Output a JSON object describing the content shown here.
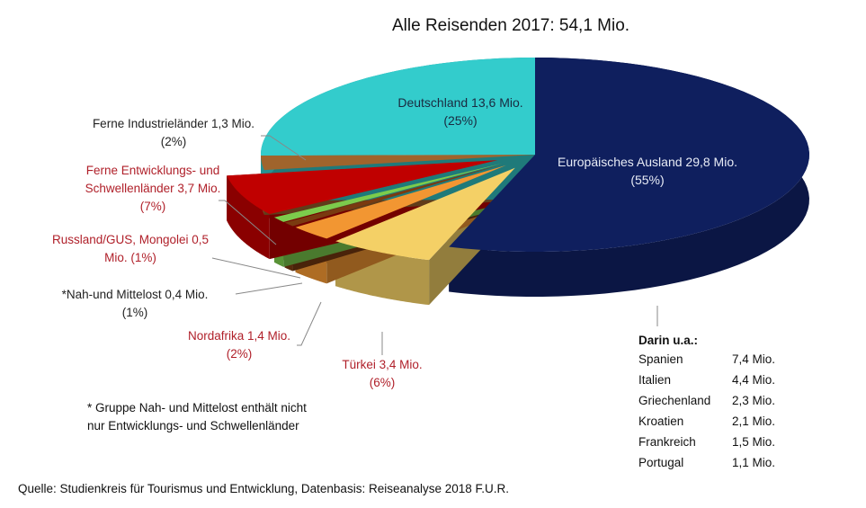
{
  "chart_data": {
    "type": "pie",
    "title": "Alle Reisenden 2017: 54,1 Mio.",
    "unit": "Mio.",
    "slices": [
      {
        "name": "Europäisches Ausland",
        "value": 29.8,
        "percent": 55,
        "label": "Europäisches Ausland 29,8 Mio.",
        "pct_label": "(55%)",
        "color": "#0f1f5e",
        "exploded": false
      },
      {
        "name": "Türkei",
        "value": 3.4,
        "percent": 6,
        "label": "Türkei 3,4 Mio.",
        "pct_label": "(6%)",
        "color": "#f4d066",
        "exploded": true
      },
      {
        "name": "Nordafrika",
        "value": 1.4,
        "percent": 2,
        "label": "Nordafrika 1,4 Mio.",
        "pct_label": "(2%)",
        "color": "#f29632",
        "exploded": true
      },
      {
        "name": "Nah- und Mittelost",
        "value": 0.4,
        "percent": 1,
        "label": "*Nah-und Mittelost 0,4 Mio.",
        "pct_label": "(1%)",
        "color": "#7a3a10",
        "exploded": true
      },
      {
        "name": "Russland/GUS, Mongolei",
        "value": 0.5,
        "percent": 1,
        "label": "Russland/GUS, Mongolei 0,5",
        "pct_label": "Mio. (1%)",
        "color": "#7ccc4c",
        "exploded": true
      },
      {
        "name": "Ferne Entwicklungs- und Schwellenländer",
        "value": 3.7,
        "percent": 7,
        "label": "Ferne Entwicklungs- und",
        "label2": "Schwellenländer 3,7 Mio.",
        "pct_label": "(7%)",
        "color": "#c00000",
        "exploded": true
      },
      {
        "name": "Ferne Industrieländer",
        "value": 1.3,
        "percent": 2,
        "label": "Ferne Industrieländer 1,3 Mio.",
        "pct_label": "(2%)",
        "color": "#a0642c",
        "exploded": false
      },
      {
        "name": "Deutschland",
        "value": 13.6,
        "percent": 25,
        "label": "Deutschland 13,6 Mio.",
        "pct_label": "(25%)",
        "color": "#33cccc",
        "exploded": false
      }
    ]
  },
  "breakdown": {
    "heading": "Darin u.a.:",
    "rows": [
      {
        "country": "Spanien",
        "value": "7,4 Mio."
      },
      {
        "country": "Italien",
        "value": "4,4 Mio."
      },
      {
        "country": "Griechenland",
        "value": "2,3 Mio."
      },
      {
        "country": "Kroatien",
        "value": "2,1 Mio."
      },
      {
        "country": "Frankreich",
        "value": "1,5 Mio."
      },
      {
        "country": "Portugal",
        "value": "1,1 Mio."
      }
    ]
  },
  "footnote": [
    "* Gruppe Nah- und Mittelost enthält nicht",
    "nur Entwicklungs- und Schwellenländer"
  ],
  "source": "Quelle: Studienkreis für Tourismus und Entwicklung, Datenbasis: Reiseanalyse 2018 F.U.R."
}
